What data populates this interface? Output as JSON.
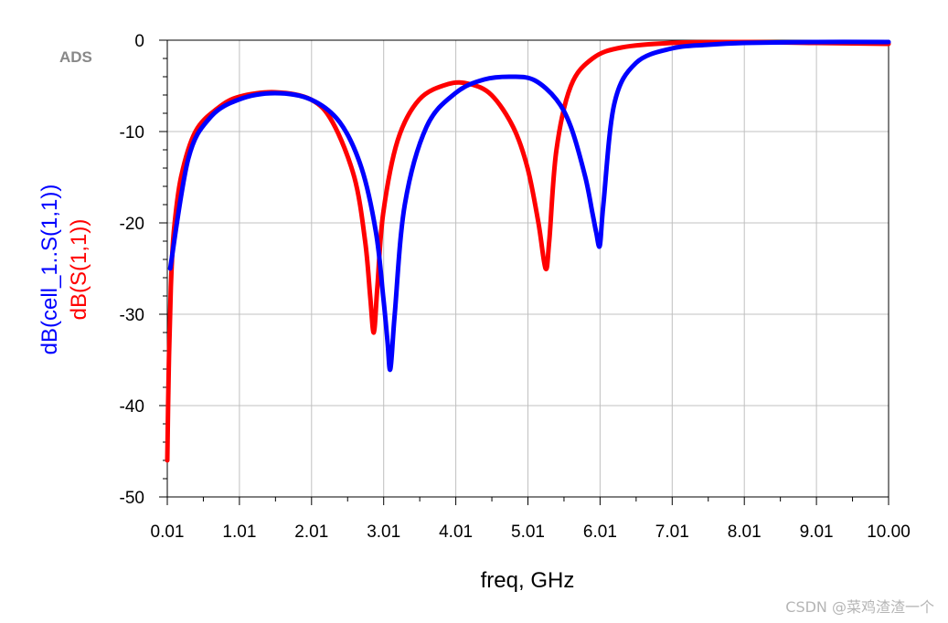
{
  "logo": "ADS",
  "watermark": "CSDN @菜鸡渣渣一个",
  "colors": {
    "series_blue": "#0000ff",
    "series_red": "#ff0000",
    "grid": "#c0c0c0",
    "axis": "#000000"
  },
  "chart_data": {
    "type": "line",
    "title": "",
    "xlabel": "freq, GHz",
    "xlim": [
      0.01,
      10.0
    ],
    "ylim": [
      -50,
      0
    ],
    "xticks": [
      "0.01",
      "1.01",
      "2.01",
      "3.01",
      "4.01",
      "5.01",
      "6.01",
      "7.01",
      "8.01",
      "9.01",
      "10.00"
    ],
    "yticks": [
      "0",
      "-10",
      "-20",
      "-30",
      "-40",
      "-50"
    ],
    "grid": true,
    "series": [
      {
        "name": "dB(cell_1..S(1,1))",
        "color": "#0000ff",
        "x": [
          0.05,
          0.3,
          0.6,
          1.0,
          1.5,
          2.0,
          2.4,
          2.7,
          2.9,
          3.0,
          3.06,
          3.1,
          3.16,
          3.3,
          3.6,
          4.0,
          4.4,
          4.8,
          5.1,
          5.4,
          5.6,
          5.8,
          5.9,
          5.95,
          6.0,
          6.05,
          6.2,
          6.5,
          7.0,
          7.5,
          8.0,
          9.0,
          10.0
        ],
        "y": [
          -25,
          -13,
          -8.5,
          -6.5,
          -5.8,
          -6.5,
          -9,
          -14,
          -21,
          -28,
          -33,
          -36,
          -30,
          -18,
          -9.5,
          -5.8,
          -4.3,
          -4.0,
          -4.4,
          -6.5,
          -9.5,
          -15,
          -19,
          -21,
          -22.5,
          -18,
          -7,
          -2.5,
          -0.9,
          -0.5,
          -0.3,
          -0.2,
          -0.2
        ]
      },
      {
        "name": "dB(S(1,1))",
        "color": "#ff0000",
        "x": [
          0.01,
          0.03,
          0.06,
          0.1,
          0.2,
          0.4,
          0.7,
          1.0,
          1.5,
          2.0,
          2.3,
          2.6,
          2.75,
          2.82,
          2.87,
          2.92,
          3.0,
          3.2,
          3.5,
          3.9,
          4.2,
          4.5,
          4.8,
          5.0,
          5.15,
          5.25,
          5.3,
          5.4,
          5.6,
          5.9,
          6.3,
          7.0,
          8.0,
          9.0,
          10.0
        ],
        "y": [
          -46,
          -36,
          -27,
          -21,
          -15,
          -10,
          -7.5,
          -6.2,
          -5.7,
          -6.5,
          -9,
          -15,
          -22,
          -28,
          -32,
          -27,
          -19,
          -11,
          -6.5,
          -4.8,
          -4.8,
          -6,
          -9.5,
          -14,
          -20,
          -25,
          -22,
          -12,
          -5,
          -2,
          -0.8,
          -0.3,
          -0.2,
          -0.3,
          -0.4
        ]
      }
    ],
    "ylabels": [
      {
        "text": "dB(cell_1..S(1,1))",
        "color": "#0000ff"
      },
      {
        "text": "dB(S(1,1))",
        "color": "#ff0000"
      }
    ]
  }
}
